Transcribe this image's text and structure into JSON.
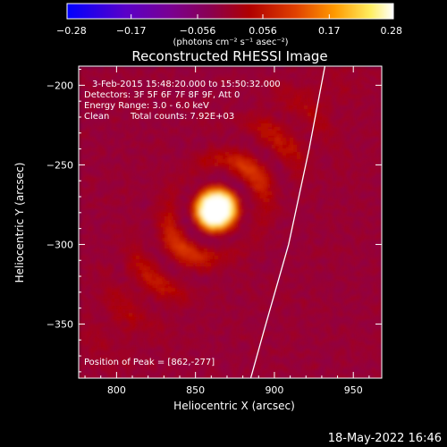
{
  "chart_data": {
    "type": "heatmap",
    "title": "Reconstructed RHESSI Image",
    "xlabel": "Heliocentric X (arcsec)",
    "ylabel": "Heliocentric Y (arcsec)",
    "xlim": [
      776,
      968
    ],
    "ylim": [
      -384,
      -188
    ],
    "x_ticks": [
      800,
      850,
      900,
      950
    ],
    "y_ticks": [
      -200,
      -250,
      -300,
      -350
    ],
    "x_tick_labels": [
      "800",
      "850",
      "900",
      "950"
    ],
    "y_tick_labels": [
      "−200",
      "−250",
      "−300",
      "−350"
    ],
    "colorbar": {
      "range": [
        -0.28,
        0.28
      ],
      "ticks": [
        -0.28,
        -0.17,
        -0.056,
        0.056,
        0.17,
        0.28
      ],
      "tick_labels": [
        "−0.28",
        "−0.17",
        "−0.056",
        "0.056",
        "0.17",
        "0.28"
      ],
      "units_label": "(photons cm⁻² s⁻¹ asec⁻²)",
      "colormap": [
        "#0000ff",
        "#5a00c8",
        "#7a0090",
        "#8a0050",
        "#b00000",
        "#e04000",
        "#ff9a00",
        "#ffee60",
        "#ffffff"
      ]
    },
    "annotations": {
      "time_range": "3-Feb-2015 15:48:20.000 to 15:50:32.000",
      "detectors": "Detectors: 3F 5F 6F 7F 8F 9F, Att 0",
      "energy_range": "Energy Range: 3.0 - 6.0 keV",
      "algorithm": "Clean",
      "total_counts": "Total counts: 7.92E+03",
      "peak_position": "Position of Peak = [862,-277]"
    },
    "peak": {
      "x": 862,
      "y": -277
    },
    "limb_curve": [
      [
        932,
        -188
      ],
      [
        922,
        -240
      ],
      [
        909,
        -300
      ],
      [
        894,
        -352
      ],
      [
        885,
        -384
      ]
    ]
  },
  "footer": {
    "date_stamp": "18-May-2022 16:46"
  }
}
